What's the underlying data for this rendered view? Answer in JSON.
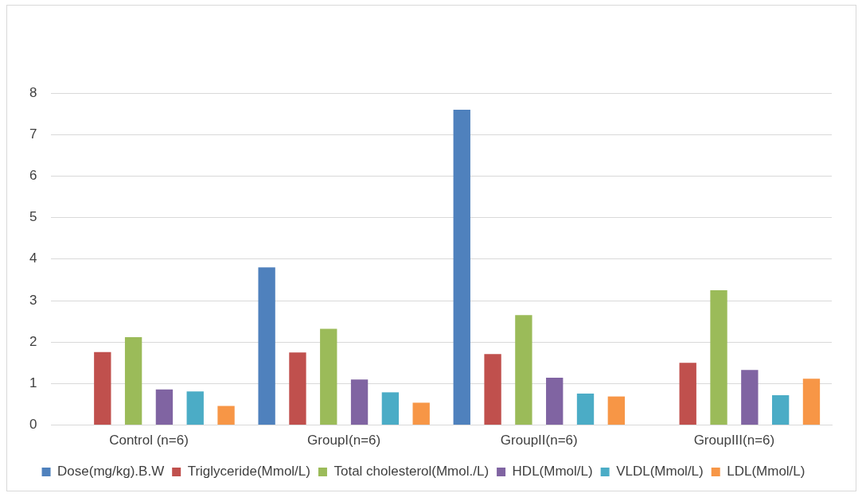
{
  "chart_data": {
    "type": "bar",
    "categories": [
      "Control (n=6)",
      "GroupI(n=6)",
      "GroupII(n=6)",
      "GroupIII(n=6)"
    ],
    "series": [
      {
        "name": "Dose(mg/kg).B.W",
        "color": "#4f81bd",
        "values": [
          0,
          3.8,
          7.6,
          0
        ]
      },
      {
        "name": "Triglyceride(Mmol/L)",
        "color": "#c0504d",
        "values": [
          1.76,
          1.75,
          1.71,
          1.5
        ]
      },
      {
        "name": "Total cholesterol(Mmol./L)",
        "color": "#9bbb59",
        "values": [
          2.12,
          2.32,
          2.65,
          3.25
        ]
      },
      {
        "name": "HDL(Mmol/L)",
        "color": "#8064a2",
        "values": [
          0.86,
          1.1,
          1.14,
          1.33
        ]
      },
      {
        "name": "VLDL(Mmol/L)",
        "color": "#4bacc6",
        "values": [
          0.81,
          0.79,
          0.76,
          0.72
        ]
      },
      {
        "name": "LDL(Mmol/L)",
        "color": "#f79646",
        "values": [
          0.46,
          0.54,
          0.69,
          1.12
        ]
      }
    ],
    "ylim": [
      0,
      8
    ],
    "yticks": [
      0,
      1,
      2,
      3,
      4,
      5,
      6,
      7,
      8
    ],
    "grid": "y",
    "legend": "bottom"
  }
}
